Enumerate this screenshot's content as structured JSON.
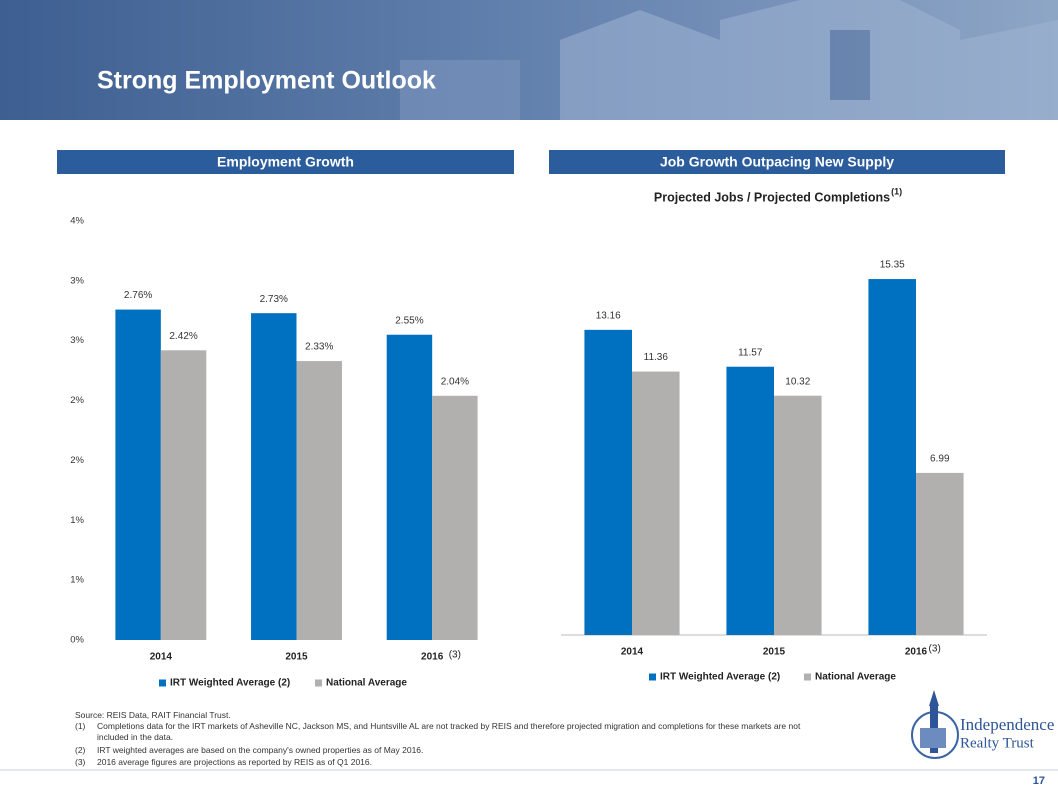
{
  "header": {
    "title": "Strong Employment Outlook"
  },
  "chart_data": [
    {
      "type": "bar",
      "title": "Employment Growth",
      "categories": [
        "2014",
        "2015",
        "2016"
      ],
      "category_notes": [
        null,
        null,
        "(3)"
      ],
      "series": [
        {
          "name": "IRT Weighted Average (2)",
          "color": "#0070c0",
          "values": [
            2.76,
            2.73,
            2.55
          ],
          "value_labels": [
            "2.76%",
            "2.73%",
            "2.55%"
          ]
        },
        {
          "name": "National Average",
          "color": "#b2afaf",
          "values": [
            2.42,
            2.33,
            2.04
          ],
          "value_labels": [
            "2.42%",
            "2.33%",
            "2.04%"
          ]
        }
      ],
      "ylim": [
        0,
        3.5
      ],
      "yticks": [
        {
          "value": 0,
          "label": "0%"
        },
        {
          "value": 0.5,
          "label": "1%"
        },
        {
          "value": 1,
          "label": "1%"
        },
        {
          "value": 1.5,
          "label": "2%"
        },
        {
          "value": 2,
          "label": "2%"
        },
        {
          "value": 2.5,
          "label": "3%"
        },
        {
          "value": 3,
          "label": "3%"
        },
        {
          "value": 3.5,
          "label": "4%"
        }
      ],
      "legend": "bottom"
    },
    {
      "type": "bar",
      "title": "Job Growth Outpacing New Supply",
      "subtitle": "Projected Jobs / Projected Completions",
      "subtitle_note": "(1)",
      "categories": [
        "2014",
        "2015",
        "2016"
      ],
      "category_notes": [
        null,
        null,
        "(3)"
      ],
      "series": [
        {
          "name": "IRT Weighted Average (2)",
          "color": "#0070c0",
          "values": [
            13.16,
            11.57,
            15.35
          ]
        },
        {
          "name": "National Average",
          "color": "#b2afaf",
          "values": [
            11.36,
            10.32,
            6.99
          ]
        }
      ],
      "ylim": [
        0,
        16
      ],
      "legend": "bottom"
    }
  ],
  "footnotes": {
    "source": "Source: REIS Data, RAIT Financial Trust.",
    "notes": [
      {
        "number": "(1)",
        "text": "Completions data for the IRT markets of Asheville NC, Jackson MS, and Huntsville AL are not tracked by REIS and therefore projected migration and completions for these markets are not included in the data."
      },
      {
        "number": "(2)",
        "text": "IRT weighted averages are based on the company's owned properties as of May 2016."
      },
      {
        "number": "(3)",
        "text": "2016 average figures are projections as reported by REIS as of Q1 2016."
      }
    ]
  },
  "logo": [
    "Independence",
    "Realty Trust"
  ],
  "page_number": "17"
}
